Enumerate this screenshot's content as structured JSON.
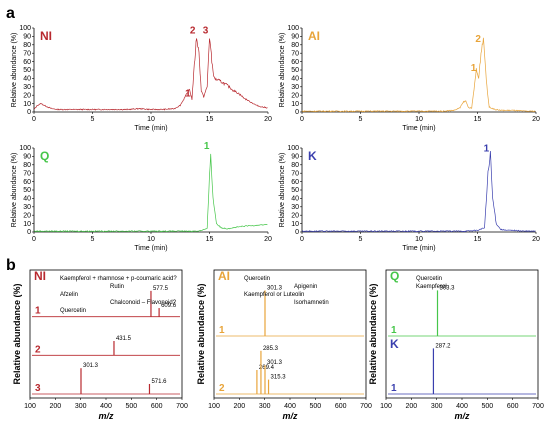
{
  "figure": {
    "label_a": "a",
    "label_b": "b"
  },
  "chart_data": [
    {
      "type": "line",
      "panel": "a",
      "tag": "NI",
      "color": "#b8292f",
      "xlabel": "Time (min)",
      "ylabel": "Relative abundance (%)",
      "xlim": [
        0,
        20
      ],
      "ylim": [
        0,
        100
      ],
      "xticks": [
        "0",
        "5",
        "10",
        "15",
        "20"
      ],
      "yticks": [
        "0",
        "10",
        "20",
        "30",
        "40",
        "50",
        "60",
        "70",
        "80",
        "90",
        "100"
      ],
      "x": [
        0,
        0.3,
        0.6,
        1,
        1.5,
        2,
        3,
        4,
        5,
        6,
        7,
        8,
        9,
        10,
        11,
        12,
        12.5,
        13,
        13.3,
        13.5,
        13.7,
        13.9,
        14.1,
        14.3,
        14.5,
        14.8,
        15,
        15.2,
        15.4,
        15.7,
        16,
        16.5,
        17,
        17.5,
        18,
        18.5,
        19,
        19.5,
        20
      ],
      "y": [
        3,
        8,
        10,
        7,
        4,
        3,
        3,
        3,
        3,
        3,
        3,
        3,
        4,
        3,
        3,
        4,
        8,
        20,
        27,
        15,
        55,
        90,
        70,
        25,
        18,
        30,
        90,
        60,
        40,
        38,
        36,
        32,
        26,
        22,
        16,
        12,
        8,
        6,
        5
      ],
      "peaks": [
        {
          "label": "1",
          "x": 13.5
        },
        {
          "label": "2",
          "x": 13.9
        },
        {
          "label": "3",
          "x": 15.0
        }
      ]
    },
    {
      "type": "line",
      "panel": "a",
      "tag": "AI",
      "color": "#e8a43a",
      "xlabel": "Time (min)",
      "ylabel": "Relative abundance (%)",
      "xlim": [
        0,
        20
      ],
      "ylim": [
        0,
        100
      ],
      "xticks": [
        "0",
        "5",
        "10",
        "15",
        "20"
      ],
      "yticks": [
        "0",
        "10",
        "20",
        "30",
        "40",
        "50",
        "60",
        "70",
        "80",
        "90",
        "100"
      ],
      "x": [
        0,
        2,
        4,
        6,
        8,
        10,
        12,
        13,
        13.5,
        13.8,
        14,
        14.2,
        14.5,
        14.9,
        15.1,
        15.3,
        15.5,
        15.8,
        16,
        16.5,
        17,
        18,
        19,
        20
      ],
      "y": [
        1,
        1,
        1,
        1,
        1,
        1,
        1,
        2,
        5,
        12,
        13,
        6,
        4,
        50,
        40,
        70,
        90,
        30,
        6,
        3,
        2,
        2,
        1,
        1
      ],
      "peaks": [
        {
          "label": "1",
          "x": 15.0
        },
        {
          "label": "2",
          "x": 15.4
        }
      ]
    },
    {
      "type": "line",
      "panel": "a",
      "tag": "Q",
      "color": "#46c64a",
      "xlabel": "Time (min)",
      "ylabel": "Relative abundance (%)",
      "xlim": [
        0,
        20
      ],
      "ylim": [
        0,
        100
      ],
      "xticks": [
        "0",
        "5",
        "10",
        "15",
        "20"
      ],
      "yticks": [
        "0",
        "10",
        "20",
        "30",
        "40",
        "50",
        "60",
        "70",
        "80",
        "90",
        "100"
      ],
      "x": [
        0,
        2,
        4,
        6,
        8,
        10,
        12,
        14,
        14.8,
        15.1,
        15.3,
        15.6,
        16,
        16.5,
        17,
        17.5,
        18,
        19,
        20
      ],
      "y": [
        1,
        1,
        1,
        1,
        1,
        1,
        1,
        1,
        4,
        95,
        40,
        10,
        5,
        4,
        5,
        6,
        7,
        8,
        9
      ],
      "peaks": [
        {
          "label": "1",
          "x": 15.1
        }
      ]
    },
    {
      "type": "line",
      "panel": "a",
      "tag": "K",
      "color": "#3a3fae",
      "xlabel": "Time (min)",
      "ylabel": "Relative abundance (%)",
      "xlim": [
        0,
        20
      ],
      "ylim": [
        0,
        100
      ],
      "xticks": [
        "0",
        "5",
        "10",
        "15",
        "20"
      ],
      "yticks": [
        "0",
        "10",
        "20",
        "30",
        "40",
        "50",
        "60",
        "70",
        "80",
        "90",
        "100"
      ],
      "x": [
        0,
        2,
        4,
        6,
        8,
        10,
        12,
        14,
        15,
        15.6,
        15.9,
        16.1,
        16.3,
        16.6,
        17,
        17.5,
        18,
        19,
        20
      ],
      "y": [
        1,
        1,
        1,
        1,
        1,
        1,
        1,
        1,
        2,
        5,
        70,
        92,
        40,
        10,
        3,
        2,
        2,
        1,
        1
      ],
      "peaks": [
        {
          "label": "1",
          "x": 16.1
        }
      ]
    },
    {
      "type": "line",
      "panel": "b",
      "tag": "NI",
      "color": "#b8292f",
      "xlabel": "m/z",
      "ylabel": "Relative abundance (%)",
      "xlim": [
        100,
        700
      ],
      "xticks": [
        "100",
        "200",
        "300",
        "400",
        "500",
        "600",
        "700"
      ],
      "traces": [
        {
          "label": "1",
          "sticks": [
            {
              "mz": 577.5,
              "h": 0.9,
              "text": "577.5"
            },
            {
              "mz": 609.6,
              "h": 0.3,
              "text": "609.6"
            }
          ]
        },
        {
          "label": "2",
          "sticks": [
            {
              "mz": 431.5,
              "h": 0.5,
              "text": "431.5"
            }
          ]
        },
        {
          "label": "3",
          "sticks": [
            {
              "mz": 301.3,
              "h": 0.9,
              "text": "301.3"
            },
            {
              "mz": 571.6,
              "h": 0.35,
              "text": "571.6"
            }
          ]
        }
      ],
      "annotations": [
        "Kaempferol + rhamnose + p-coumaric acid?",
        "Rutin",
        "Afzelin",
        "Chalconoid – Flavonoid?",
        "Quercetin"
      ]
    },
    {
      "type": "line",
      "panel": "b",
      "tag": "AI",
      "color": "#e8a43a",
      "xlabel": "m/z",
      "ylabel": "Relative abundance (%)",
      "xlim": [
        100,
        700
      ],
      "xticks": [
        "100",
        "200",
        "300",
        "400",
        "500",
        "600",
        "700"
      ],
      "traces": [
        {
          "label": "1",
          "sticks": [
            {
              "mz": 301.3,
              "h": 0.95,
              "text": "301.3"
            }
          ]
        },
        {
          "label": "2",
          "sticks": [
            {
              "mz": 269.4,
              "h": 0.5,
              "text": "269.4"
            },
            {
              "mz": 285.3,
              "h": 0.9,
              "text": "285.3"
            },
            {
              "mz": 301.3,
              "h": 0.6,
              "text": "301.3"
            },
            {
              "mz": 315.3,
              "h": 0.3,
              "text": "315.3"
            }
          ]
        }
      ],
      "annotations": [
        "Quercetin",
        "Apigenin",
        "Kaempferol or Luteolin",
        "Isorhamnetin"
      ]
    },
    {
      "type": "line",
      "panel": "b",
      "tag": "Q",
      "color": "#46c64a",
      "xlabel": "m/z",
      "ylabel": "Relative abundance (%)",
      "xlim": [
        100,
        700
      ],
      "xticks": [
        "100",
        "200",
        "300",
        "400",
        "500",
        "600",
        "700"
      ],
      "traces": [
        {
          "label": "1",
          "sticks": [
            {
              "mz": 303.3,
              "h": 0.95,
              "text": "303.3"
            }
          ]
        }
      ],
      "annotations": [
        "Quercetin"
      ]
    },
    {
      "type": "line",
      "panel": "b",
      "tag": "K",
      "color": "#3a3fae",
      "xlabel": "m/z",
      "ylabel": "Relative abundance (%)",
      "xlim": [
        100,
        700
      ],
      "xticks": [
        "100",
        "200",
        "300",
        "400",
        "500",
        "600",
        "700"
      ],
      "traces": [
        {
          "label": "1",
          "sticks": [
            {
              "mz": 287.2,
              "h": 0.95,
              "text": "287.2"
            }
          ]
        }
      ],
      "annotations": [
        "Kaempferol"
      ]
    }
  ]
}
